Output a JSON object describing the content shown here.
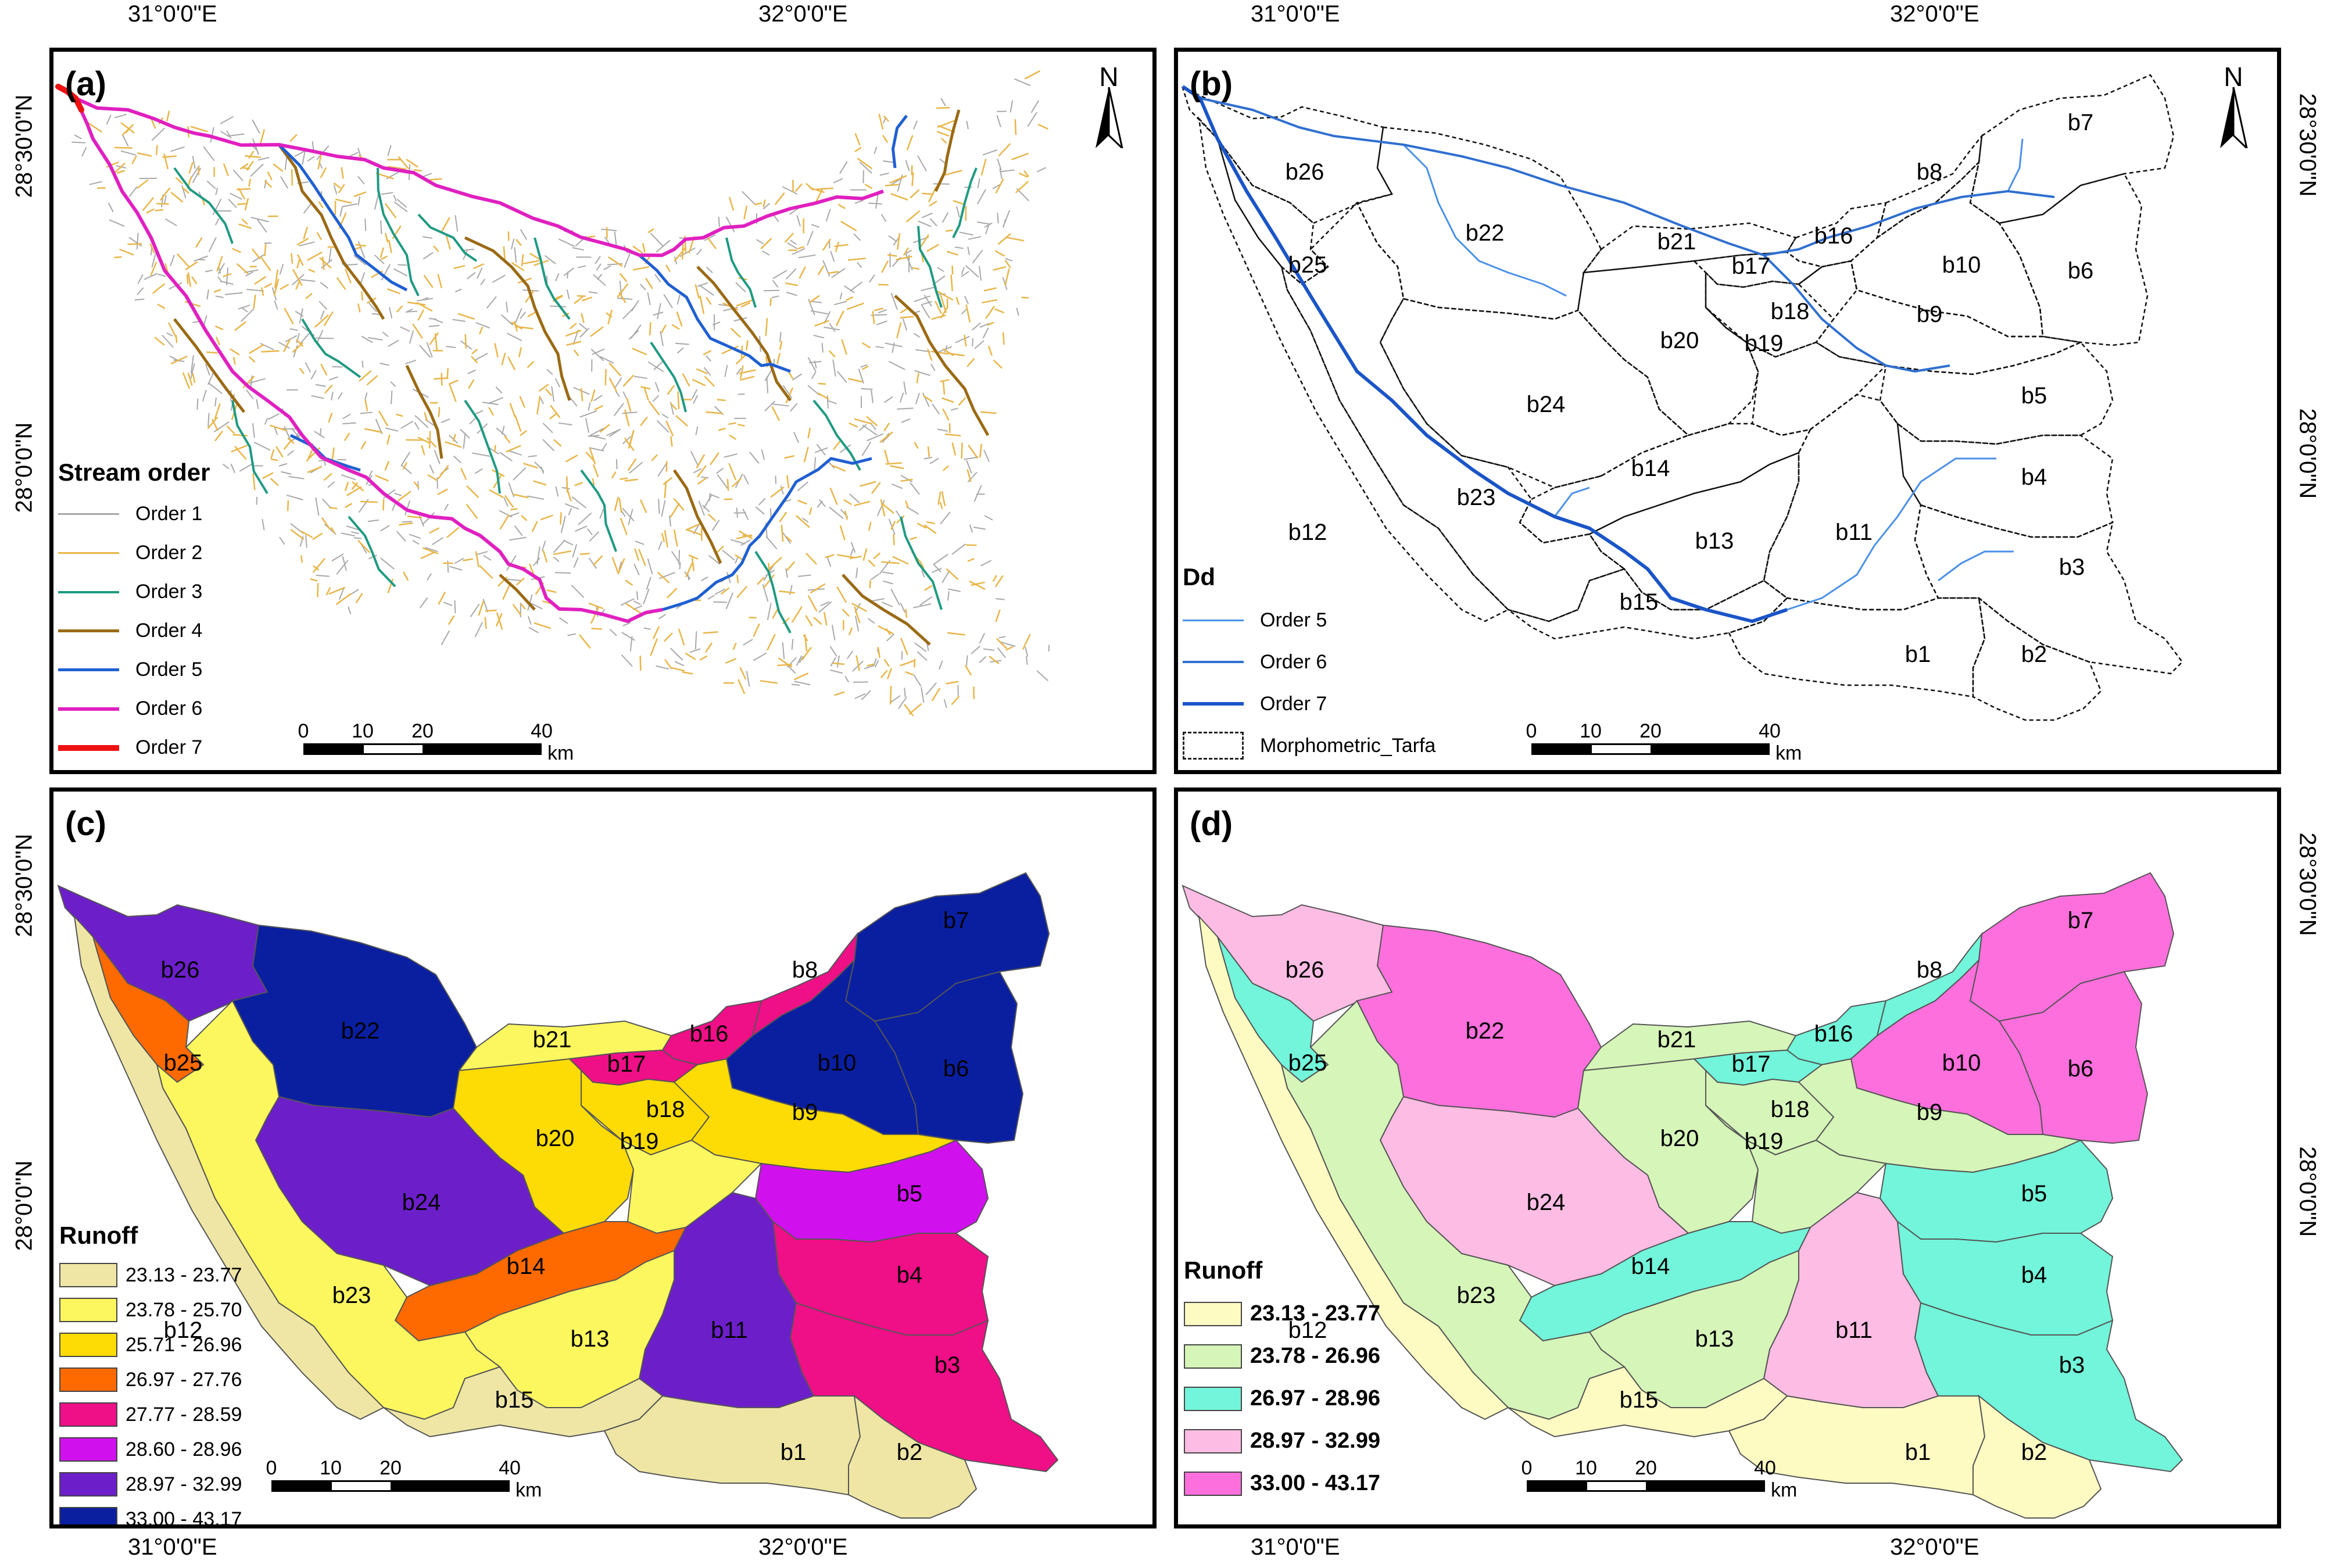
{
  "coords": {
    "top_lon_1": "31°0'0\"E",
    "top_lon_2": "32°0'0\"E",
    "top_lon_3": "31°0'0\"E",
    "top_lon_4": "32°0'0\"E",
    "bottom_lon_1": "31°0'0\"E",
    "bottom_lon_2": "32°0'0\"E",
    "bottom_lon_3": "31°0'0\"E",
    "bottom_lon_4": "32°0'0\"E",
    "left_lat_1": "28°30'0\"N",
    "left_lat_2": "28°0'0\"N",
    "left_lat_3": "28°30'0\"N",
    "left_lat_4": "28°0'0\"N",
    "right_lat_1": "28°30'0\"N",
    "right_lat_2": "28°0'0\"N",
    "right_lat_3": "28°30'0\"N",
    "right_lat_4": "28°0'0\"N"
  },
  "north_label": "N",
  "scale": {
    "t0": "0",
    "t1": "10",
    "t2": "20",
    "t3": "40",
    "unit": "km"
  },
  "panel_a": {
    "label": "(a)",
    "legend_title": "Stream order",
    "items": [
      {
        "label": "Order 1",
        "color": "#a8a8a8",
        "width": 3
      },
      {
        "label": "Order 2",
        "color": "#e8b548",
        "width": 3
      },
      {
        "label": "Order 3",
        "color": "#1e9a82",
        "width": 4
      },
      {
        "label": "Order 4",
        "color": "#9a6a14",
        "width": 5
      },
      {
        "label": "Order 5",
        "color": "#1f5fd2",
        "width": 5
      },
      {
        "label": "Order 6",
        "color": "#e020c0",
        "width": 6
      },
      {
        "label": "Order 7",
        "color": "#ee1111",
        "width": 10
      }
    ]
  },
  "panel_b": {
    "label": "(b)",
    "legend_title": "Dd",
    "items": [
      {
        "label": "Order 5",
        "color": "#4a90e8",
        "width": 3
      },
      {
        "label": "Order 6",
        "color": "#2f6fd0",
        "width": 4
      },
      {
        "label": "Order 7",
        "color": "#1a55c8",
        "width": 6
      }
    ],
    "boundary_label": "Morphometric_Tarfa"
  },
  "panel_c": {
    "label": "(c)",
    "legend_title": "Runoff",
    "classes": [
      {
        "label": "23.13 - 23.77",
        "color": "#efe6a5"
      },
      {
        "label": "23.78 - 25.70",
        "color": "#fcf75e"
      },
      {
        "label": "25.71 - 26.96",
        "color": "#fddb05"
      },
      {
        "label": "26.97 - 27.76",
        "color": "#ff6a00"
      },
      {
        "label": "27.77 - 28.59",
        "color": "#ef0f87"
      },
      {
        "label": "28.60 - 28.96",
        "color": "#d110ee"
      },
      {
        "label": "28.97 - 32.99",
        "color": "#6c1fc9"
      },
      {
        "label": "33.00 - 43.17",
        "color": "#0a1fa0"
      }
    ]
  },
  "panel_d": {
    "label": "(d)",
    "legend_title": "Runoff",
    "classes": [
      {
        "label": "23.13 - 23.77",
        "color": "#fdfbc2"
      },
      {
        "label": "23.78 - 26.96",
        "color": "#d6f5b8"
      },
      {
        "label": "26.97 - 28.96",
        "color": "#72f5da"
      },
      {
        "label": "28.97 - 32.99",
        "color": "#fdbce4"
      },
      {
        "label": "33.00 - 43.17",
        "color": "#fd6fdc"
      }
    ]
  },
  "basins": {
    "b1": "b1",
    "b2": "b2",
    "b3": "b3",
    "b4": "b4",
    "b5": "b5",
    "b6": "b6",
    "b7": "b7",
    "b8": "b8",
    "b9": "b9",
    "b10": "b10",
    "b11": "b11",
    "b12": "b12",
    "b13": "b13",
    "b14": "b14",
    "b15": "b15",
    "b16": "b16",
    "b17": "b17",
    "b18": "b18",
    "b19": "b19",
    "b20": "b20",
    "b21": "b21",
    "b22": "b22",
    "b23": "b23",
    "b24": "b24",
    "b25": "b25",
    "b26": "b26"
  },
  "runoff_c": {
    "b1": "#efe6a5",
    "b2": "#efe6a5",
    "b3": "#ef0f87",
    "b4": "#ef0f87",
    "b5": "#d110ee",
    "b6": "#0a1fa0",
    "b7": "#0a1fa0",
    "b8": "#ef0f87",
    "b9": "#fddb05",
    "b10": "#0a1fa0",
    "b11": "#6c1fc9",
    "b12": "#efe6a5",
    "b13": "#fcf75e",
    "b14": "#ff6a00",
    "b15": "#efe6a5",
    "b16": "#ef0f87",
    "b17": "#ef0f87",
    "b18": "#fddb05",
    "b19": "#fcf75e",
    "b20": "#fddb05",
    "b21": "#fcf75e",
    "b22": "#0a1fa0",
    "b23": "#fcf75e",
    "b24": "#6c1fc9",
    "b25": "#ff6a00",
    "b26": "#6c1fc9"
  },
  "runoff_d": {
    "b1": "#fdfbc2",
    "b2": "#fdfbc2",
    "b3": "#72f5da",
    "b4": "#72f5da",
    "b5": "#72f5da",
    "b6": "#fd6fdc",
    "b7": "#fd6fdc",
    "b8": "#72f5da",
    "b9": "#d6f5b8",
    "b10": "#fd6fdc",
    "b11": "#fdbce4",
    "b12": "#fdfbc2",
    "b13": "#d6f5b8",
    "b14": "#72f5da",
    "b15": "#fdfbc2",
    "b16": "#72f5da",
    "b17": "#72f5da",
    "b18": "#d6f5b8",
    "b19": "#d6f5b8",
    "b20": "#d6f5b8",
    "b21": "#d6f5b8",
    "b22": "#fd6fdc",
    "b23": "#d6f5b8",
    "b24": "#fdbce4",
    "b25": "#72f5da",
    "b26": "#fdbce4"
  }
}
